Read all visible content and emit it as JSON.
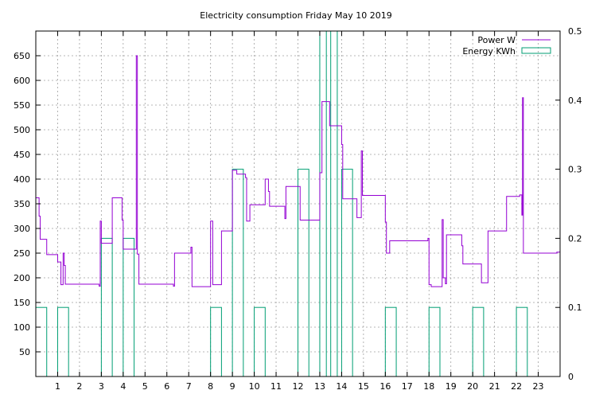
{
  "chart_data": {
    "type": "line",
    "title": "Electricity consumption Friday May 10 2019",
    "xlabel": "",
    "ylabel": "",
    "y2label": "",
    "xlim": [
      0,
      24
    ],
    "ylim": [
      0,
      700
    ],
    "y2lim": [
      0,
      0.5
    ],
    "grid": true,
    "legend_position": "top-right",
    "x_ticks": [
      1,
      2,
      3,
      4,
      5,
      6,
      7,
      8,
      9,
      10,
      11,
      12,
      13,
      14,
      15,
      16,
      17,
      18,
      19,
      20,
      21,
      22,
      23
    ],
    "y_ticks": [
      50,
      100,
      150,
      200,
      250,
      300,
      350,
      400,
      450,
      500,
      550,
      600,
      650
    ],
    "y2_ticks": [
      0,
      0.1,
      0.2,
      0.3,
      0.4,
      0.5
    ],
    "series": [
      {
        "name": "Power W",
        "axis": "left",
        "style": "step-line",
        "color": "#9400d3",
        "points": [
          [
            0.0,
            362
          ],
          [
            0.15,
            362
          ],
          [
            0.15,
            325
          ],
          [
            0.2,
            325
          ],
          [
            0.2,
            278
          ],
          [
            0.5,
            278
          ],
          [
            0.5,
            247
          ],
          [
            1.0,
            247
          ],
          [
            1.0,
            232
          ],
          [
            1.15,
            232
          ],
          [
            1.15,
            186
          ],
          [
            1.25,
            186
          ],
          [
            1.25,
            250
          ],
          [
            1.3,
            250
          ],
          [
            1.3,
            225
          ],
          [
            1.35,
            225
          ],
          [
            1.35,
            187
          ],
          [
            2.9,
            187
          ],
          [
            2.9,
            183
          ],
          [
            2.95,
            183
          ],
          [
            2.95,
            315
          ],
          [
            3.0,
            315
          ],
          [
            3.0,
            270
          ],
          [
            3.5,
            270
          ],
          [
            3.5,
            362
          ],
          [
            3.95,
            362
          ],
          [
            3.95,
            317
          ],
          [
            4.0,
            317
          ],
          [
            4.0,
            258
          ],
          [
            4.6,
            258
          ],
          [
            4.6,
            650
          ],
          [
            4.65,
            650
          ],
          [
            4.65,
            248
          ],
          [
            4.72,
            248
          ],
          [
            4.72,
            187
          ],
          [
            6.3,
            187
          ],
          [
            6.3,
            183
          ],
          [
            6.35,
            183
          ],
          [
            6.35,
            250
          ],
          [
            7.1,
            250
          ],
          [
            7.1,
            262
          ],
          [
            7.15,
            262
          ],
          [
            7.15,
            182
          ],
          [
            8.0,
            182
          ],
          [
            8.0,
            315
          ],
          [
            8.1,
            315
          ],
          [
            8.1,
            186
          ],
          [
            8.5,
            186
          ],
          [
            8.5,
            295
          ],
          [
            9.0,
            295
          ],
          [
            9.0,
            418
          ],
          [
            9.2,
            418
          ],
          [
            9.2,
            410
          ],
          [
            9.6,
            410
          ],
          [
            9.6,
            403
          ],
          [
            9.65,
            403
          ],
          [
            9.65,
            315
          ],
          [
            9.8,
            315
          ],
          [
            9.8,
            348
          ],
          [
            10.5,
            348
          ],
          [
            10.5,
            400
          ],
          [
            10.65,
            400
          ],
          [
            10.65,
            375
          ],
          [
            10.7,
            375
          ],
          [
            10.7,
            345
          ],
          [
            11.4,
            345
          ],
          [
            11.4,
            320
          ],
          [
            11.45,
            320
          ],
          [
            11.45,
            385
          ],
          [
            12.1,
            385
          ],
          [
            12.1,
            317
          ],
          [
            13.0,
            317
          ],
          [
            13.0,
            413
          ],
          [
            13.1,
            413
          ],
          [
            13.1,
            557
          ],
          [
            13.45,
            557
          ],
          [
            13.45,
            508
          ],
          [
            14.0,
            508
          ],
          [
            14.0,
            470
          ],
          [
            14.05,
            470
          ],
          [
            14.05,
            360
          ],
          [
            14.7,
            360
          ],
          [
            14.7,
            322
          ],
          [
            14.9,
            322
          ],
          [
            14.9,
            457
          ],
          [
            14.95,
            457
          ],
          [
            14.95,
            367
          ],
          [
            16.0,
            367
          ],
          [
            16.0,
            313
          ],
          [
            16.05,
            313
          ],
          [
            16.05,
            250
          ],
          [
            16.2,
            250
          ],
          [
            16.2,
            275
          ],
          [
            17.95,
            275
          ],
          [
            17.95,
            280
          ],
          [
            18.0,
            280
          ],
          [
            18.0,
            186
          ],
          [
            18.1,
            186
          ],
          [
            18.1,
            182
          ],
          [
            18.6,
            182
          ],
          [
            18.6,
            318
          ],
          [
            18.65,
            318
          ],
          [
            18.65,
            200
          ],
          [
            18.75,
            200
          ],
          [
            18.75,
            188
          ],
          [
            18.8,
            188
          ],
          [
            18.8,
            287
          ],
          [
            19.5,
            287
          ],
          [
            19.5,
            265
          ],
          [
            19.55,
            265
          ],
          [
            19.55,
            228
          ],
          [
            20.4,
            228
          ],
          [
            20.4,
            190
          ],
          [
            20.7,
            190
          ],
          [
            20.7,
            295
          ],
          [
            21.55,
            295
          ],
          [
            21.55,
            365
          ],
          [
            22.15,
            365
          ],
          [
            22.15,
            368
          ],
          [
            22.25,
            368
          ],
          [
            22.25,
            327
          ],
          [
            22.28,
            327
          ],
          [
            22.28,
            565
          ],
          [
            22.32,
            565
          ],
          [
            22.32,
            250
          ],
          [
            23.85,
            250
          ],
          [
            23.85,
            252
          ],
          [
            24.0,
            252
          ]
        ]
      },
      {
        "name": "Energy KWh",
        "axis": "right",
        "style": "boxes",
        "color": "#009e73",
        "bars": [
          [
            0.0,
            0.1
          ],
          [
            1.0,
            0.1
          ],
          [
            3.0,
            0.2
          ],
          [
            4.0,
            0.2
          ],
          [
            8.0,
            0.1
          ],
          [
            9.0,
            0.3
          ],
          [
            10.0,
            0.1
          ],
          [
            12.0,
            0.3
          ],
          [
            13.0,
            0.5
          ],
          [
            13.3,
            0.5
          ],
          [
            14.0,
            0.3
          ],
          [
            16.0,
            0.1
          ],
          [
            18.0,
            0.1
          ],
          [
            20.0,
            0.1
          ],
          [
            22.0,
            0.1
          ]
        ],
        "bar_width_hours": 0.5
      }
    ]
  }
}
